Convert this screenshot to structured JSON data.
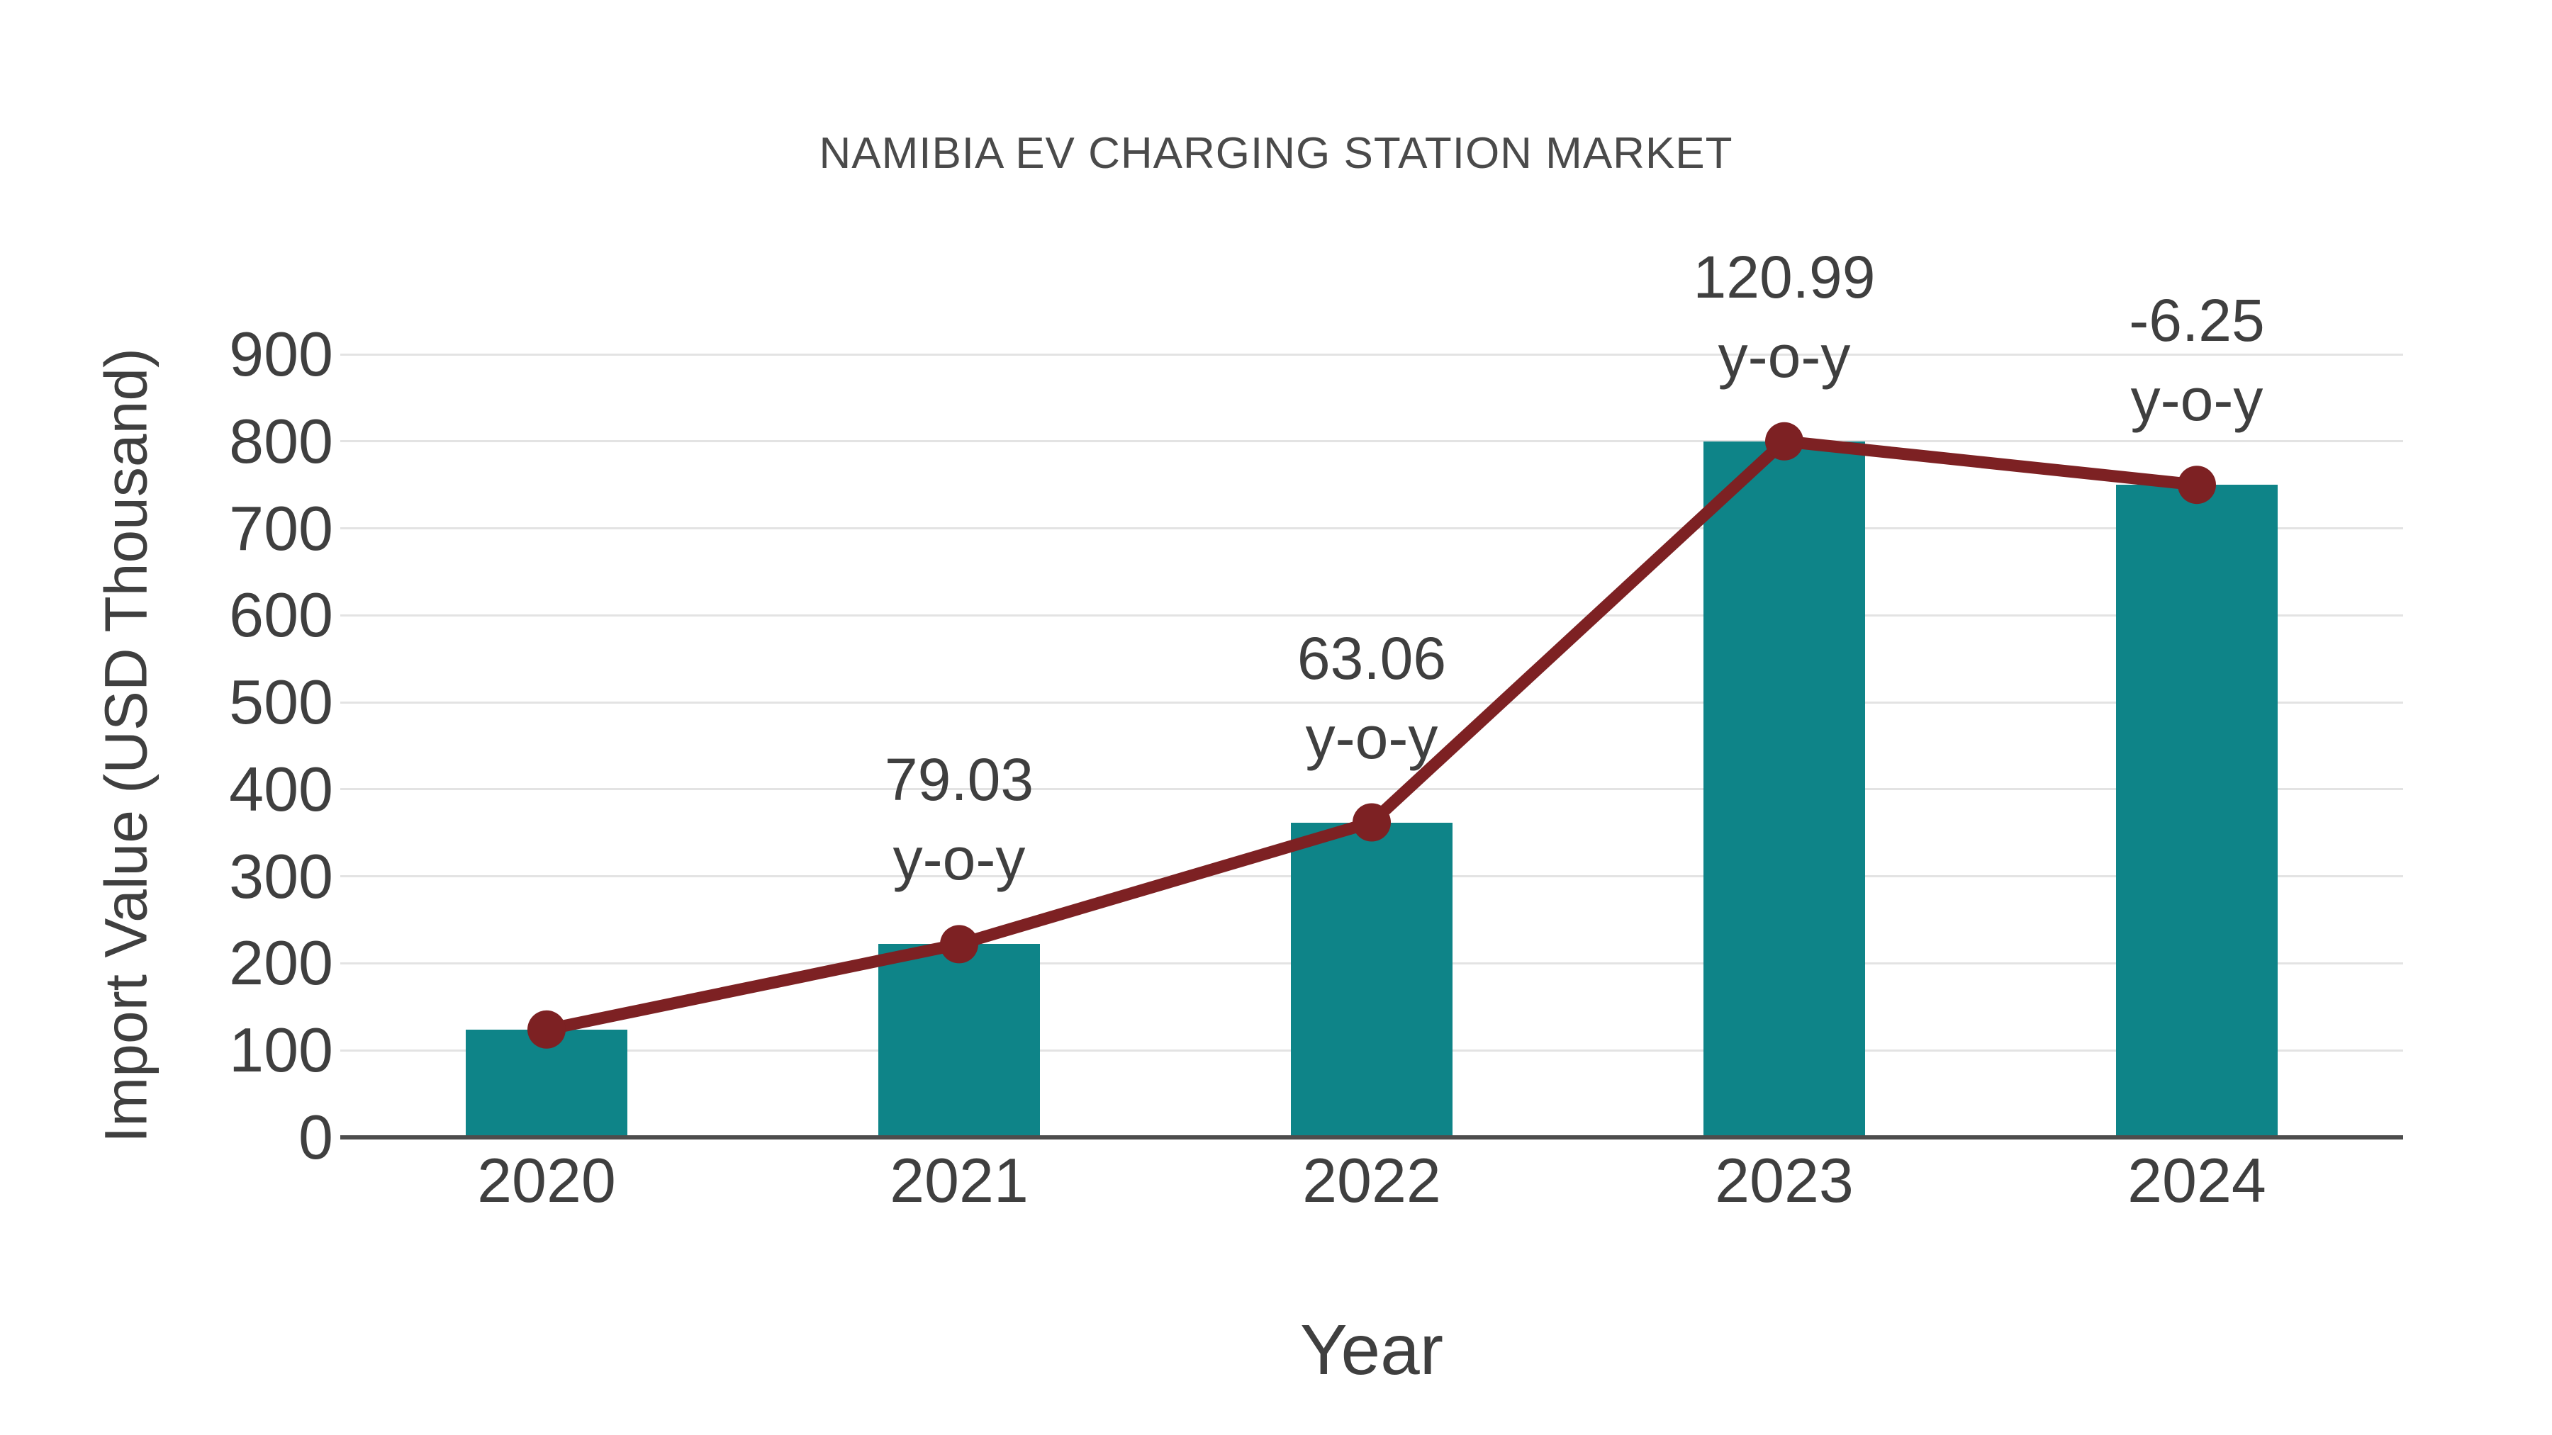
{
  "page": {
    "background": "#ffffff"
  },
  "chart_data": {
    "type": "bar",
    "overlay": "line",
    "title": "NAMIBIA EV CHARGING STATION MARKET",
    "xlabel": "Year",
    "ylabel": "Import Value (USD Thousand)",
    "categories": [
      "2020",
      "2021",
      "2022",
      "2023",
      "2024"
    ],
    "values": [
      124,
      222,
      362,
      800,
      750
    ],
    "line_values": [
      124,
      222,
      362,
      800,
      750
    ],
    "yticks": [
      "0",
      "100",
      "200",
      "300",
      "400",
      "500",
      "600",
      "700",
      "800",
      "900"
    ],
    "ylim": [
      0,
      900
    ],
    "grid": true,
    "legend": "none",
    "annotations": [
      {
        "category": "2021",
        "value": "79.03",
        "label": "y-o-y"
      },
      {
        "category": "2022",
        "value": "63.06",
        "label": "y-o-y"
      },
      {
        "category": "2023",
        "value": "120.99",
        "label": "y-o-y"
      },
      {
        "category": "2024",
        "value": "-6.25",
        "label": "y-o-y"
      }
    ],
    "colors": {
      "bar": "#0e8488",
      "line": "#7d2123",
      "marker": "#7d2123",
      "axis": "#4d4d4d",
      "grid": "#e3e3e3",
      "tick_text": "#3f3f3f",
      "title_text": "#4a4a4a"
    }
  }
}
